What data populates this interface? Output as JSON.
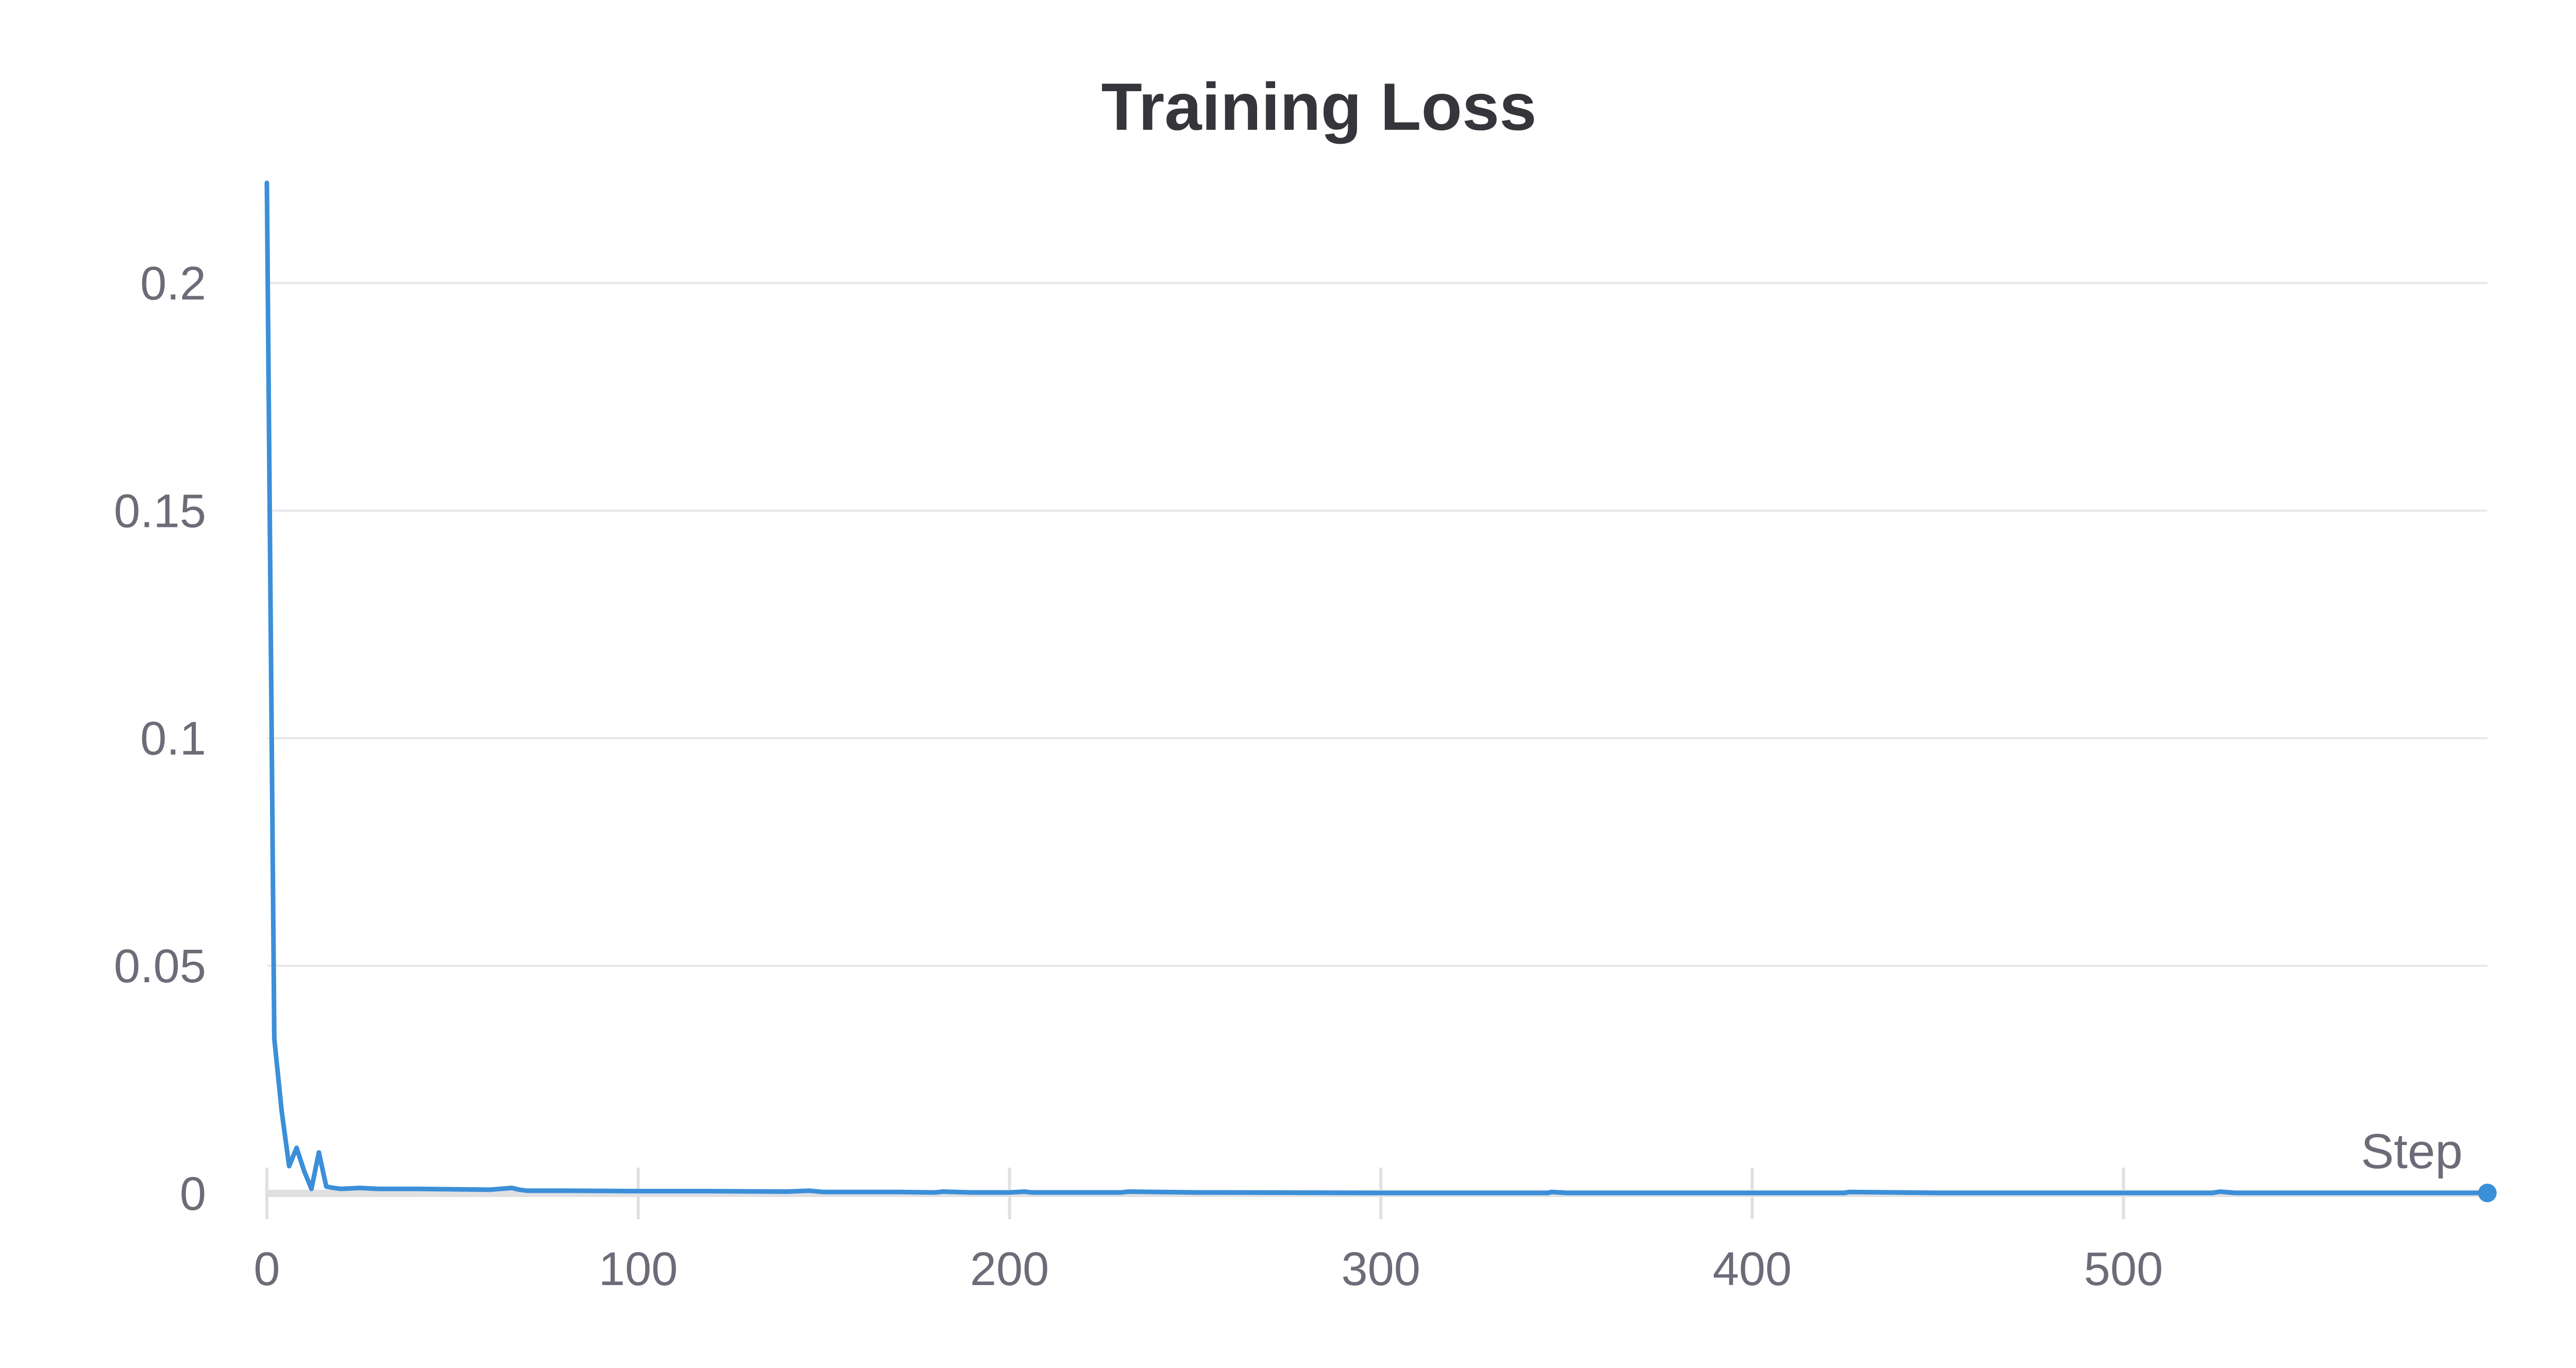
{
  "colors": {
    "series": "#3b8fd9",
    "grid": "#e6e7eb",
    "axis": "#e0e0e3",
    "text": "#6b6c78",
    "title": "#35363b"
  },
  "chart_data": {
    "type": "line",
    "title": "Training Loss",
    "xlabel": "Step",
    "ylabel": "",
    "xlim": [
      0,
      598
    ],
    "ylim": [
      0,
      0.222
    ],
    "grid": true,
    "x_ticks": [
      0,
      100,
      200,
      300,
      400,
      500
    ],
    "y_ticks": [
      0,
      0.05,
      0.1,
      0.15,
      0.2
    ],
    "x_tick_labels": [
      "0",
      "100",
      "200",
      "300",
      "400",
      "500"
    ],
    "y_tick_labels": [
      "0",
      "0.05",
      "0.1",
      "0.15",
      "0.2"
    ],
    "series": [
      {
        "x": [
          0,
          2,
          4,
          6,
          8,
          10,
          12,
          14,
          16,
          18,
          20,
          25,
          30,
          40,
          50,
          60,
          66,
          68,
          70,
          80,
          100,
          120,
          140,
          146,
          150,
          170,
          180,
          182,
          190,
          200,
          204,
          206,
          210,
          230,
          232,
          250,
          300,
          345,
          346,
          350,
          400,
          425,
          426,
          450,
          500,
          524,
          526,
          530,
          560,
          598
        ],
        "y": [
          0.222,
          0.034,
          0.018,
          0.006,
          0.01,
          0.005,
          0.001,
          0.009,
          0.0015,
          0.0012,
          0.001,
          0.0012,
          0.001,
          0.001,
          0.0009,
          0.0008,
          0.0012,
          0.0008,
          0.0006,
          0.0006,
          0.0005,
          0.0005,
          0.0004,
          0.0006,
          0.0003,
          0.0003,
          0.0002,
          0.0004,
          0.0002,
          0.0002,
          0.0004,
          0.0002,
          0.0002,
          0.0002,
          0.0004,
          0.0002,
          0.0001,
          0.0001,
          0.0003,
          0.0001,
          0.0001,
          0.0001,
          0.0003,
          0.0001,
          0.0001,
          0.0001,
          0.0004,
          0.0001,
          0.0001,
          0.0001
        ]
      }
    ]
  }
}
